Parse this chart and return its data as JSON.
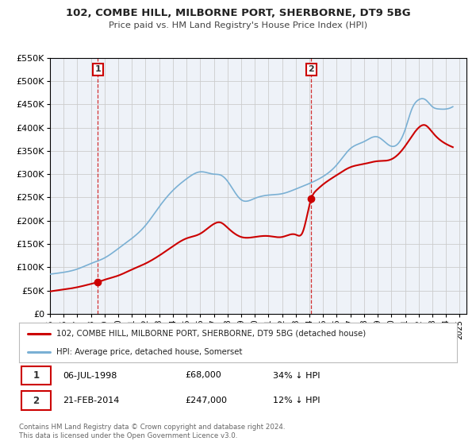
{
  "title": "102, COMBE HILL, MILBORNE PORT, SHERBORNE, DT9 5BG",
  "subtitle": "Price paid vs. HM Land Registry's House Price Index (HPI)",
  "legend_entry1": "102, COMBE HILL, MILBORNE PORT, SHERBORNE, DT9 5BG (detached house)",
  "legend_entry2": "HPI: Average price, detached house, Somerset",
  "marker1_date": 1998.51,
  "marker1_value": 68000,
  "marker1_label": "1",
  "marker2_date": 2014.13,
  "marker2_value": 247000,
  "marker2_label": "2",
  "sale_color": "#cc0000",
  "hpi_color": "#7ab0d4",
  "marker_box_color": "#cc0000",
  "grid_color": "#cccccc",
  "background_color": "#eef2f8",
  "ylim": [
    0,
    550000
  ],
  "xlim_start": 1995.0,
  "xlim_end": 2025.5,
  "footer_text1": "Contains HM Land Registry data © Crown copyright and database right 2024.",
  "footer_text2": "This data is licensed under the Open Government Licence v3.0.",
  "table_row1_date": "06-JUL-1998",
  "table_row1_price": "£68,000",
  "table_row1_hpi": "34% ↓ HPI",
  "table_row2_date": "21-FEB-2014",
  "table_row2_price": "£247,000",
  "table_row2_hpi": "12% ↓ HPI"
}
